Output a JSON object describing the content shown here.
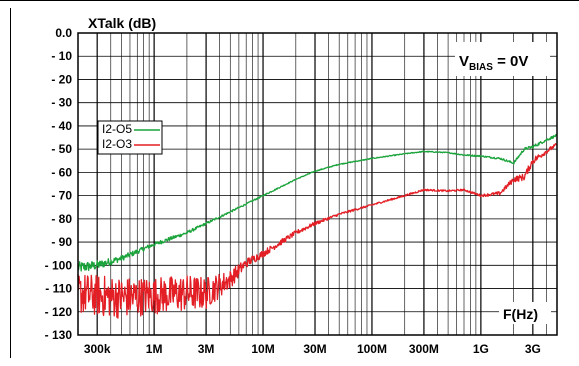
{
  "chart_data": {
    "type": "line",
    "title": "XTalk (dB)",
    "xlabel": "F(Hz)",
    "annotation": {
      "prefix": "V",
      "subscript": "BIAS",
      "suffix": " = 0V"
    },
    "x_scale": "log",
    "xlim": [
      200000,
      5000000000
    ],
    "ylim": [
      -130,
      0
    ],
    "grid": true,
    "legend_position": "left-middle",
    "x_ticks": [
      {
        "value": 300000,
        "label": "300k"
      },
      {
        "value": 1000000,
        "label": "1M"
      },
      {
        "value": 3000000,
        "label": "3M"
      },
      {
        "value": 10000000,
        "label": "10M"
      },
      {
        "value": 30000000,
        "label": "30M"
      },
      {
        "value": 100000000,
        "label": "100M"
      },
      {
        "value": 300000000,
        "label": "300M"
      },
      {
        "value": 1000000000,
        "label": "1G"
      },
      {
        "value": 3000000000,
        "label": "3G"
      }
    ],
    "y_ticks": [
      {
        "value": 0,
        "label": "0.0"
      },
      {
        "value": -10,
        "label": "- 10"
      },
      {
        "value": -20,
        "label": "- 20"
      },
      {
        "value": -30,
        "label": "- 30"
      },
      {
        "value": -40,
        "label": "- 40"
      },
      {
        "value": -50,
        "label": "- 50"
      },
      {
        "value": -60,
        "label": "- 60"
      },
      {
        "value": -70,
        "label": "- 70"
      },
      {
        "value": -80,
        "label": "- 80"
      },
      {
        "value": -90,
        "label": "- 90"
      },
      {
        "value": -100,
        "label": "- 100"
      },
      {
        "value": -110,
        "label": "- 110"
      },
      {
        "value": -120,
        "label": "- 120"
      },
      {
        "value": -130,
        "label": "- 130"
      }
    ],
    "series": [
      {
        "name": "I2-O5",
        "color": "#1aa33a",
        "x": [
          200000,
          300000,
          500000,
          1000000,
          2000000,
          3000000,
          5000000,
          10000000,
          20000000,
          30000000,
          50000000,
          100000000,
          200000000,
          300000000,
          500000000,
          700000000,
          1000000000,
          1500000000,
          2000000000,
          2500000000,
          3000000000,
          4000000000,
          5000000000
        ],
        "y": [
          -101,
          -100,
          -97,
          -91,
          -86,
          -82,
          -77,
          -70,
          -63,
          -59.5,
          -56.5,
          -54,
          -52,
          -51,
          -51.5,
          -52.5,
          -53,
          -54,
          -56,
          -50,
          -49,
          -46,
          -44
        ],
        "noise": [
          2.5,
          2,
          1.2,
          0.9,
          0.7,
          0.5,
          0.4,
          0.3,
          0.2,
          0.2,
          0.2,
          0.2,
          0.2,
          0.2,
          0.2,
          0.3,
          0.3,
          0.4,
          0.5,
          0.6,
          0.7,
          0.6,
          0.5
        ]
      },
      {
        "name": "I2-O3",
        "color": "#e31e24",
        "x": [
          200000,
          300000,
          500000,
          1000000,
          2000000,
          3000000,
          5000000,
          7000000,
          10000000,
          20000000,
          30000000,
          50000000,
          100000000,
          200000000,
          300000000,
          500000000,
          700000000,
          1000000000,
          1500000000,
          2000000000,
          2500000000,
          3000000000,
          4000000000,
          5000000000
        ],
        "y": [
          -112,
          -113,
          -114,
          -113,
          -112,
          -112,
          -106,
          -99,
          -95,
          -86,
          -82,
          -78,
          -74,
          -70,
          -67.5,
          -68,
          -67.5,
          -70,
          -69,
          -63,
          -62,
          -55,
          -51,
          -48
        ],
        "noise": [
          9,
          9,
          9,
          8,
          8,
          7,
          4,
          2,
          1.5,
          1,
          0.8,
          0.5,
          0.4,
          0.4,
          0.4,
          0.4,
          0.4,
          0.5,
          0.8,
          1.2,
          1.5,
          1.5,
          1,
          0.8
        ]
      }
    ]
  }
}
